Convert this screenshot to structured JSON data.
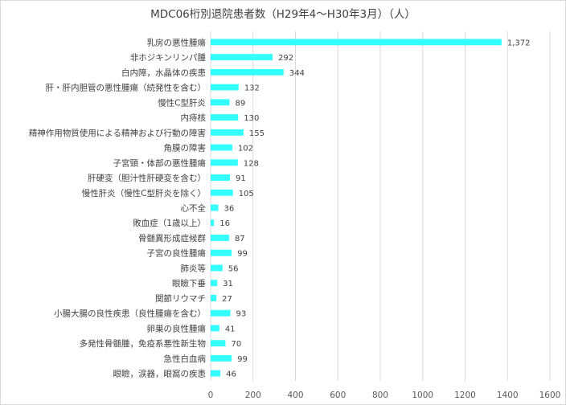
{
  "chart_data": {
    "type": "bar",
    "orientation": "horizontal",
    "title": "MDC06桁別退院患者数（H29年4～H30年3月）（人）",
    "categories": [
      "乳房の悪性腫瘍",
      "非ホジキンリンパ腫",
      "白内障，水晶体の疾患",
      "肝・肝内胆管の悪性腫瘍（続発性を含む）",
      "慢性C型肝炎",
      "内痔核",
      "精神作用物質使用による精神および行動の障害",
      "角膜の障害",
      "子宮頸・体部の悪性腫瘍",
      "肝硬変（胆汁性肝硬変を含む）",
      "慢性肝炎（慢性C型肝炎を除く）",
      "心不全",
      "敗血症（1歳以上）",
      "骨髄異形成症候群",
      "子宮の良性腫瘍",
      "肺炎等",
      "眼瞼下垂",
      "関節リウマチ",
      "小腸大腸の良性疾患（良性腫瘍を含む）",
      "卵巣の良性腫瘍",
      "多発性骨髄腫，免疫系悪性新生物",
      "急性白血病",
      "眼瞼，涙器，眼窩の疾患"
    ],
    "values": [
      1372,
      292,
      344,
      132,
      89,
      130,
      155,
      102,
      128,
      91,
      105,
      36,
      16,
      87,
      99,
      56,
      31,
      27,
      93,
      41,
      70,
      99,
      46
    ],
    "value_labels": [
      "1,372",
      "292",
      "344",
      "132",
      "89",
      "130",
      "155",
      "102",
      "128",
      "91",
      "105",
      "36",
      "16",
      "87",
      "99",
      "56",
      "31",
      "27",
      "93",
      "41",
      "70",
      "99",
      "46"
    ],
    "xlim": [
      0,
      1600
    ],
    "xticks": [
      0,
      200,
      400,
      600,
      800,
      1000,
      1200,
      1400,
      1600
    ],
    "grid": true,
    "legend": "none",
    "bar_color": "#33ffff",
    "grid_color": "#d9d9d9",
    "text_color": "#404040"
  }
}
